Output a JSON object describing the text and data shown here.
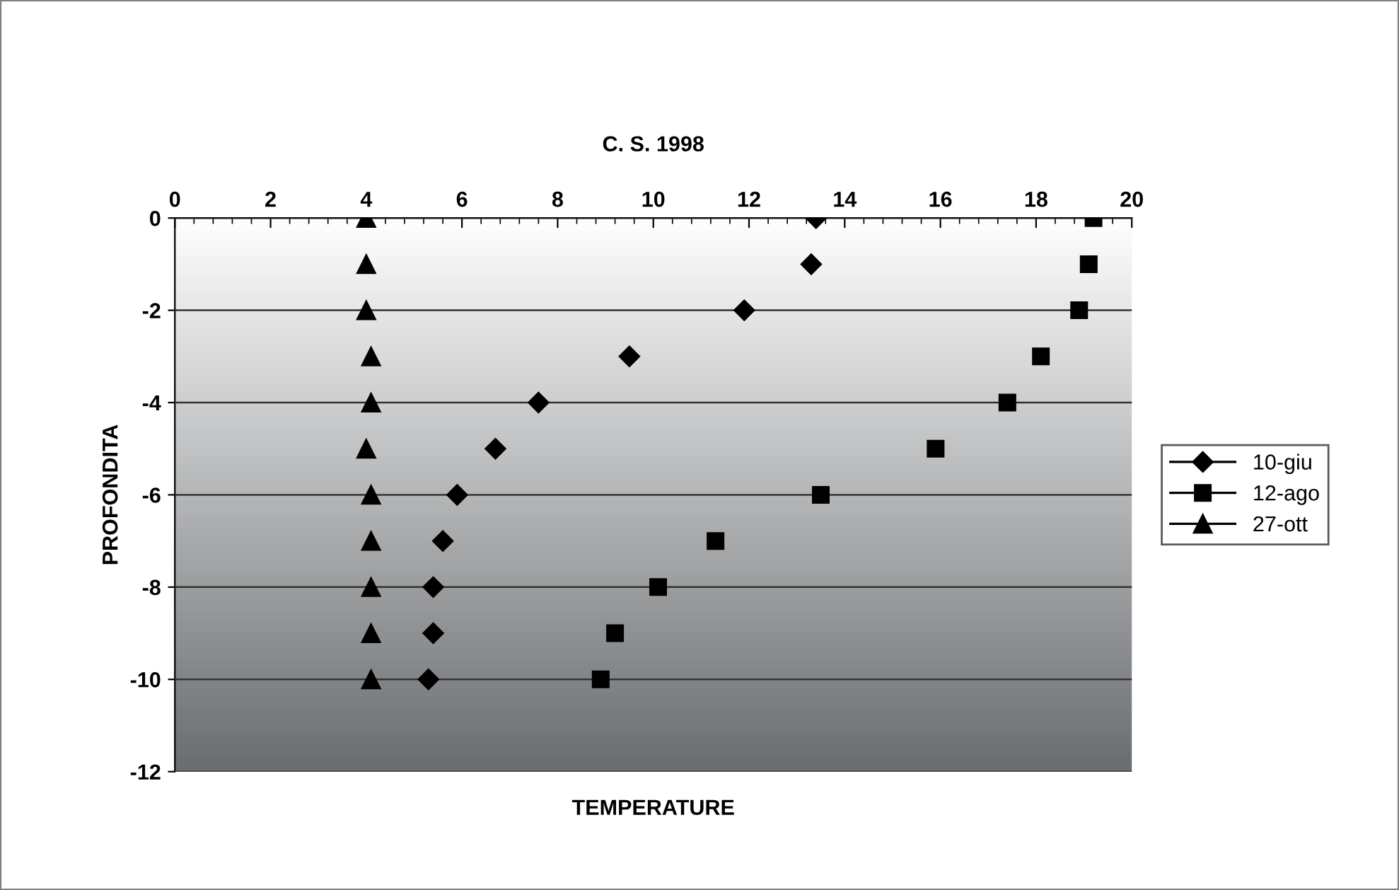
{
  "chart_data": {
    "type": "scatter",
    "title": "C. S. 1998",
    "xlabel": "TEMPERATURE",
    "ylabel": "PROFONDITA",
    "xlim": [
      0,
      20
    ],
    "xticks": [
      0,
      2,
      4,
      6,
      8,
      10,
      12,
      14,
      16,
      18,
      20
    ],
    "ylim": [
      -12,
      0
    ],
    "yticks": [
      -12,
      -10,
      -8,
      -6,
      -4,
      -2,
      0
    ],
    "grid": "y",
    "legend": "right",
    "series": [
      {
        "name": "10-giu",
        "color": "#000000",
        "marker": "diamond",
        "x": [
          13.4,
          13.3,
          11.9,
          9.5,
          7.6,
          6.7,
          5.9,
          5.6,
          5.4,
          5.4,
          5.3
        ],
        "values": [
          0,
          -1,
          -2,
          -3,
          -4,
          -5,
          -6,
          -7,
          -8,
          -9,
          -10
        ]
      },
      {
        "name": "12-ago",
        "color": "#000000",
        "marker": "square",
        "x": [
          19.2,
          19.1,
          18.9,
          18.1,
          17.4,
          15.9,
          13.5,
          11.3,
          10.1,
          9.2,
          8.9
        ],
        "values": [
          0,
          -1,
          -2,
          -3,
          -4,
          -5,
          -6,
          -7,
          -8,
          -9,
          -10
        ]
      },
      {
        "name": "27-ott",
        "color": "#000000",
        "marker": "triangle",
        "x": [
          4.0,
          4.0,
          4.0,
          4.1,
          4.1,
          4.0,
          4.1,
          4.1,
          4.1,
          4.1,
          4.1
        ],
        "values": [
          0,
          -1,
          -2,
          -3,
          -4,
          -5,
          -6,
          -7,
          -8,
          -9,
          -10
        ]
      }
    ]
  }
}
